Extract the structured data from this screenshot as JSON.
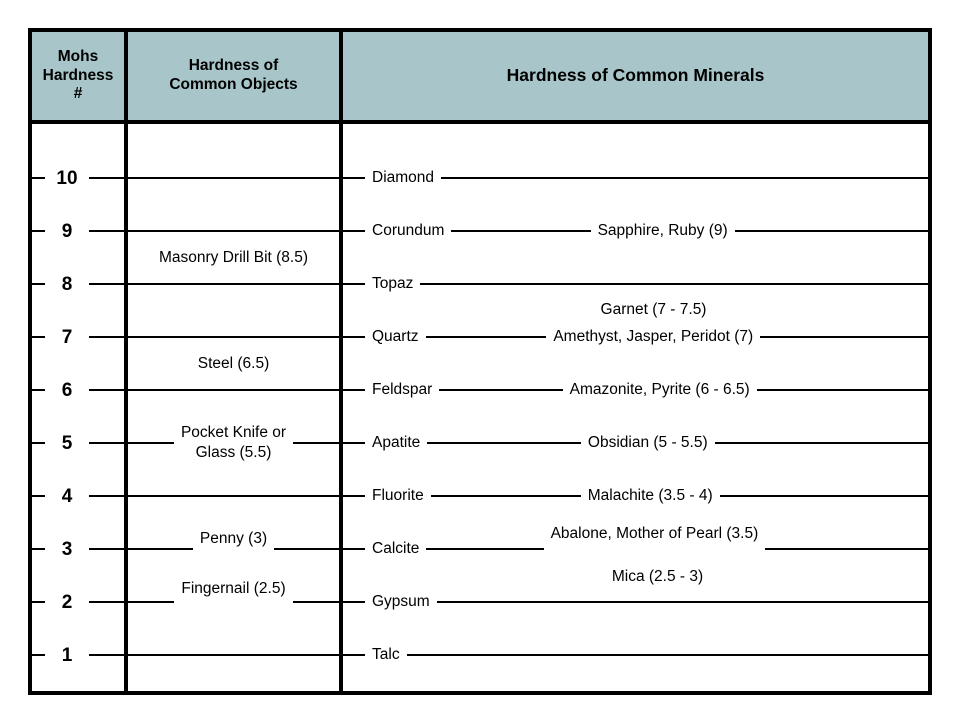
{
  "header": {
    "scale_col": "Mohs\nHardness\n#",
    "objects_col": "Hardness of\nCommon Objects",
    "minerals_col": "Hardness of Common Minerals"
  },
  "scale": {
    "min": 1,
    "max": 10,
    "ticks": [
      "10",
      "9",
      "8",
      "7",
      "6",
      "5",
      "4",
      "3",
      "2",
      "1"
    ]
  },
  "objects": [
    {
      "label": "Masonry Drill Bit (8.5)",
      "value": 8.5
    },
    {
      "label": "Steel (6.5)",
      "value": 6.5
    },
    {
      "label": "Pocket Knife or\nGlass (5.5)",
      "value": 5.5
    },
    {
      "label": "Penny (3)",
      "value": 3
    },
    {
      "label": "Fingernail (2.5)",
      "value": 2.5
    }
  ],
  "minerals": [
    {
      "name": "Diamond",
      "level": 10,
      "gem": ""
    },
    {
      "name": "Corundum",
      "level": 9,
      "gem": "Sapphire, Ruby (9)"
    },
    {
      "name": "Topaz",
      "level": 8,
      "gem": ""
    },
    {
      "name": "Quartz",
      "level": 7,
      "gem": "Amethyst, Jasper, Peridot (7)"
    },
    {
      "name": "Feldspar",
      "level": 6,
      "gem": "Amazonite, Pyrite (6 - 6.5)"
    },
    {
      "name": "Apatite",
      "level": 5,
      "gem": "Obsidian (5 - 5.5)"
    },
    {
      "name": "Fluorite",
      "level": 4,
      "gem": "Malachite (3.5 - 4)"
    },
    {
      "name": "Calcite",
      "level": 3,
      "gem": "Abalone, Mother of Pearl (3.5)"
    },
    {
      "name": "Gypsum",
      "level": 2,
      "gem": ""
    },
    {
      "name": "Talc",
      "level": 1,
      "gem": ""
    }
  ],
  "floating_gems": [
    {
      "label": "Garnet (7 - 7.5)",
      "value_range": "7 - 7.5"
    },
    {
      "label": "Mica (2.5 - 3)",
      "value_range": "2.5 - 3"
    }
  ],
  "colors": {
    "header_bg": "#a8c6ca",
    "line": "#000000",
    "text": "#000000",
    "background": "#ffffff"
  }
}
